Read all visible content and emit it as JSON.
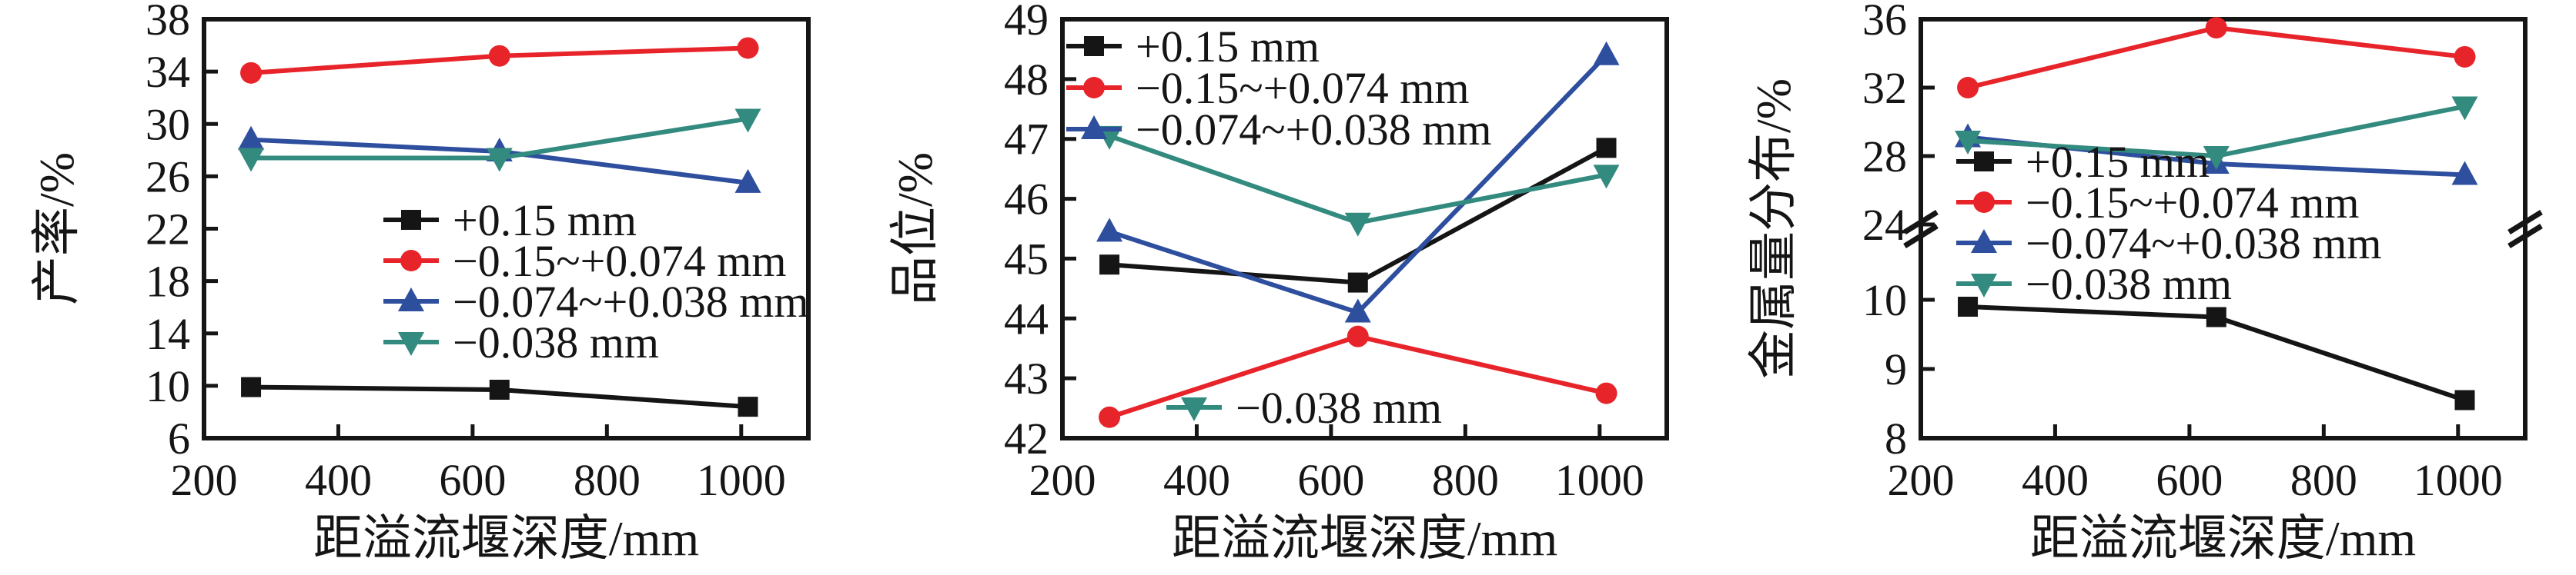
{
  "figure": {
    "background": "#ffffff",
    "palette": {
      "black": "#151515",
      "red": "#e8242b",
      "blue": "#2e4e9e",
      "teal": "#338a7e"
    },
    "shared_xlabel": "距溢流堰深度/mm",
    "series_labels": [
      "+0.15 mm",
      "−0.15~+0.074 mm",
      "−0.074~+0.038 mm",
      "−0.038 mm"
    ]
  },
  "chart_data": [
    {
      "type": "line",
      "title": "",
      "ylabel": "产率/%",
      "xlabel": "距溢流堰深度/mm",
      "x": [
        270,
        640,
        1010
      ],
      "xlim": [
        200,
        1100
      ],
      "xticks": [
        200,
        400,
        600,
        800,
        1000
      ],
      "ylim": [
        6,
        38
      ],
      "yticks": [
        6,
        10,
        14,
        18,
        22,
        26,
        30,
        34,
        38
      ],
      "grid": false,
      "series": [
        {
          "name": "+0.15 mm",
          "color": "black",
          "marker": "square",
          "values": [
            9.9,
            9.7,
            8.4
          ]
        },
        {
          "name": "−0.15~+0.074 mm",
          "color": "red",
          "marker": "circle",
          "values": [
            33.9,
            35.2,
            35.8
          ]
        },
        {
          "name": "−0.074~+0.038 mm",
          "color": "blue",
          "marker": "triangle-up",
          "values": [
            28.8,
            27.9,
            25.5
          ]
        },
        {
          "name": "−0.038 mm",
          "color": "teal",
          "marker": "triangle-down",
          "values": [
            27.4,
            27.4,
            30.4
          ]
        }
      ],
      "legend_position": "center-inside",
      "legends": [
        {
          "x": 498,
          "y": 286,
          "dy": 53,
          "items": [
            0,
            1,
            2,
            3
          ]
        }
      ]
    },
    {
      "type": "line",
      "title": "",
      "ylabel": "品位/%",
      "xlabel": "距溢流堰深度/mm",
      "x": [
        270,
        640,
        1010
      ],
      "xlim": [
        200,
        1100
      ],
      "xticks": [
        200,
        400,
        600,
        800,
        1000
      ],
      "ylim": [
        42,
        49
      ],
      "yticks": [
        42,
        43,
        44,
        45,
        46,
        47,
        48,
        49
      ],
      "grid": false,
      "series": [
        {
          "name": "+0.15 mm",
          "color": "black",
          "marker": "square",
          "values": [
            44.9,
            44.6,
            46.85
          ]
        },
        {
          "name": "−0.15~+0.074 mm",
          "color": "red",
          "marker": "circle",
          "values": [
            42.35,
            43.7,
            42.75
          ]
        },
        {
          "name": "−0.074~+0.038 mm",
          "color": "blue",
          "marker": "triangle-up",
          "values": [
            45.45,
            44.1,
            48.4
          ]
        },
        {
          "name": "−0.038 mm",
          "color": "teal",
          "marker": "triangle-down",
          "values": [
            47.05,
            45.6,
            46.4
          ]
        }
      ],
      "legend_position": "upper-left-inside plus single bottom entry",
      "legends": [
        {
          "x": 270,
          "y": 60,
          "dy": 54,
          "items": [
            0,
            1,
            2
          ]
        },
        {
          "x": 400,
          "y": 530,
          "dy": 54,
          "items": [
            3
          ]
        }
      ]
    },
    {
      "type": "line",
      "title": "",
      "ylabel": "金属量分布/%",
      "xlabel": "距溢流堰深度/mm",
      "x": [
        270,
        640,
        1010
      ],
      "xlim": [
        200,
        1100
      ],
      "xticks": [
        200,
        400,
        600,
        800,
        1000
      ],
      "axis_break": {
        "upper": {
          "lim": [
            24,
            36
          ],
          "ticks": [
            24,
            28,
            32,
            36
          ],
          "px": [
            292,
            25
          ]
        },
        "lower": {
          "lim": [
            8,
            10
          ],
          "ticks": [
            8,
            9,
            10
          ],
          "px": [
            570,
            390
          ]
        },
        "mark_y": 297
      },
      "grid": false,
      "series": [
        {
          "name": "+0.15 mm",
          "color": "black",
          "marker": "square",
          "values": [
            9.9,
            9.75,
            8.55
          ]
        },
        {
          "name": "−0.15~+0.074 mm",
          "color": "red",
          "marker": "circle",
          "values": [
            32.0,
            35.5,
            33.8
          ]
        },
        {
          "name": "−0.074~+0.038 mm",
          "color": "blue",
          "marker": "triangle-up",
          "values": [
            29.1,
            27.55,
            26.9
          ]
        },
        {
          "name": "−0.038 mm",
          "color": "teal",
          "marker": "triangle-down",
          "values": [
            28.9,
            28.0,
            30.9
          ]
        }
      ],
      "legend_position": "left-middle-inside",
      "legends": [
        {
          "x": 311,
          "y": 210,
          "dy": 53,
          "items": [
            0,
            1,
            2,
            3
          ]
        }
      ]
    }
  ]
}
